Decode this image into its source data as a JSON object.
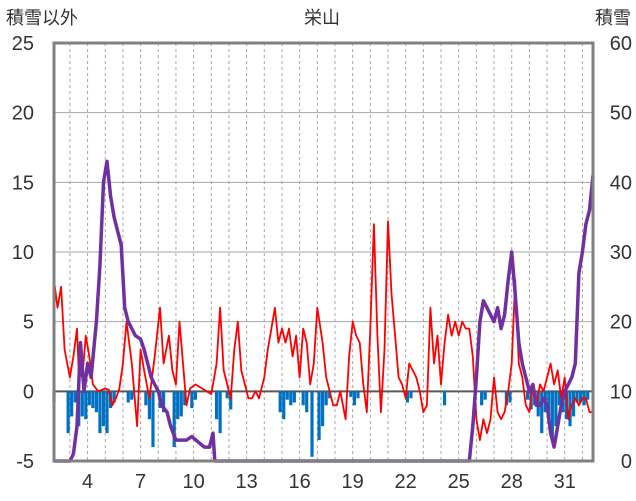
{
  "chart_data": {
    "type": "line",
    "title": "栄山",
    "left_axis_label": "積雪以外",
    "right_axis_label": "積雪",
    "x_ticks": [
      "4",
      "7",
      "10",
      "13",
      "16",
      "19",
      "22",
      "25",
      "28",
      "31"
    ],
    "y_left": {
      "min": -5,
      "max": 25,
      "ticks": [
        "25",
        "20",
        "15",
        "10",
        "5",
        "0",
        "-5"
      ]
    },
    "y_right": {
      "min": 0,
      "max": 60,
      "ticks": [
        "60",
        "50",
        "40",
        "30",
        "20",
        "10",
        "0"
      ]
    },
    "x_range": [
      2.1,
      32.6
    ],
    "grid": "dashed vertical per day, solid horizontal per 5 units",
    "series": [
      {
        "color": "#ff0000",
        "axis": "left",
        "points": [
          [
            2.1,
            8
          ],
          [
            2.3,
            6
          ],
          [
            2.5,
            7.5
          ],
          [
            2.7,
            3
          ],
          [
            3.0,
            1
          ],
          [
            3.2,
            2.5
          ],
          [
            3.4,
            4.5
          ],
          [
            3.5,
            1.5
          ],
          [
            3.7,
            1
          ],
          [
            3.9,
            4
          ],
          [
            4.1,
            2.5
          ],
          [
            4.3,
            0.5
          ],
          [
            4.6,
            0
          ],
          [
            5.0,
            0.2
          ],
          [
            5.2,
            0.1
          ],
          [
            5.4,
            -1
          ],
          [
            5.6,
            -0.5
          ],
          [
            5.8,
            0.2
          ],
          [
            6.0,
            2
          ],
          [
            6.2,
            5
          ],
          [
            6.5,
            2
          ],
          [
            6.8,
            -2.5
          ],
          [
            7.0,
            3
          ],
          [
            7.2,
            1.5
          ],
          [
            7.5,
            -0.5
          ],
          [
            7.8,
            2.5
          ],
          [
            8.1,
            6
          ],
          [
            8.3,
            2
          ],
          [
            8.6,
            4
          ],
          [
            8.8,
            1.5
          ],
          [
            9.0,
            0.5
          ],
          [
            9.2,
            5
          ],
          [
            9.4,
            2
          ],
          [
            9.6,
            -1
          ],
          [
            9.8,
            0.2
          ],
          [
            10.1,
            0.5
          ],
          [
            11.0,
            -0.2
          ],
          [
            11.3,
            2
          ],
          [
            11.5,
            6
          ],
          [
            11.7,
            1.5
          ],
          [
            11.9,
            0.5
          ],
          [
            12.1,
            -0.5
          ],
          [
            12.3,
            3
          ],
          [
            12.5,
            5
          ],
          [
            12.7,
            1.5
          ],
          [
            12.9,
            0.5
          ],
          [
            13.1,
            -0.5
          ],
          [
            13.3,
            -0.5
          ],
          [
            13.5,
            0
          ],
          [
            13.7,
            -0.5
          ],
          [
            14.0,
            1
          ],
          [
            14.2,
            3
          ],
          [
            14.4,
            4.5
          ],
          [
            14.6,
            6
          ],
          [
            14.8,
            3.5
          ],
          [
            15.0,
            4.5
          ],
          [
            15.2,
            3.5
          ],
          [
            15.4,
            4.5
          ],
          [
            15.6,
            2.5
          ],
          [
            15.8,
            4
          ],
          [
            16.0,
            1
          ],
          [
            16.2,
            4.5
          ],
          [
            16.4,
            3.5
          ],
          [
            16.6,
            0.5
          ],
          [
            16.8,
            2
          ],
          [
            17.0,
            6
          ],
          [
            17.3,
            3.5
          ],
          [
            17.5,
            1
          ],
          [
            17.7,
            0
          ],
          [
            17.9,
            -1
          ],
          [
            18.1,
            -1
          ],
          [
            18.3,
            0
          ],
          [
            18.6,
            -2
          ],
          [
            18.8,
            2.5
          ],
          [
            19.0,
            5
          ],
          [
            19.2,
            4
          ],
          [
            19.4,
            3.5
          ],
          [
            19.6,
            0.5
          ],
          [
            19.8,
            -1.5
          ],
          [
            20.0,
            4.5
          ],
          [
            20.2,
            12
          ],
          [
            20.4,
            4
          ],
          [
            20.6,
            -1.5
          ],
          [
            20.8,
            3
          ],
          [
            21.0,
            12.2
          ],
          [
            21.2,
            7
          ],
          [
            21.4,
            4
          ],
          [
            21.6,
            1
          ],
          [
            21.8,
            0.5
          ],
          [
            22.0,
            -0.5
          ],
          [
            22.2,
            2
          ],
          [
            22.4,
            1.5
          ],
          [
            22.6,
            1
          ],
          [
            22.8,
            0
          ],
          [
            23.0,
            -1.5
          ],
          [
            23.2,
            -1
          ],
          [
            23.4,
            6
          ],
          [
            23.6,
            2
          ],
          [
            23.8,
            4
          ],
          [
            24.0,
            0.5
          ],
          [
            24.2,
            3.5
          ],
          [
            24.4,
            5.5
          ],
          [
            24.6,
            4
          ],
          [
            24.8,
            5
          ],
          [
            25.0,
            4
          ],
          [
            25.2,
            5
          ],
          [
            25.4,
            4.5
          ],
          [
            25.6,
            4.5
          ],
          [
            25.8,
            2.5
          ],
          [
            26.0,
            -2
          ],
          [
            26.2,
            -3.5
          ],
          [
            26.4,
            -2
          ],
          [
            26.6,
            -3
          ],
          [
            26.8,
            -2
          ],
          [
            27.0,
            1
          ],
          [
            27.2,
            -1.5
          ],
          [
            27.4,
            -2
          ],
          [
            27.6,
            -1.5
          ],
          [
            27.8,
            0
          ],
          [
            28.0,
            2
          ],
          [
            28.2,
            8
          ],
          [
            28.4,
            2
          ],
          [
            28.6,
            1
          ],
          [
            28.8,
            -1
          ],
          [
            29.0,
            -1.5
          ],
          [
            29.2,
            0.5
          ],
          [
            29.4,
            -1
          ],
          [
            29.6,
            0.5
          ],
          [
            29.8,
            0
          ],
          [
            30.0,
            1
          ],
          [
            30.2,
            2
          ],
          [
            30.4,
            0.5
          ],
          [
            30.6,
            1.5
          ],
          [
            30.8,
            -0.5
          ],
          [
            31.0,
            1
          ],
          [
            31.2,
            -2
          ],
          [
            31.4,
            -1
          ],
          [
            31.6,
            -0.5
          ],
          [
            31.8,
            -1
          ],
          [
            32.0,
            -0.5
          ],
          [
            32.2,
            -0.5
          ],
          [
            32.4,
            -1.5
          ],
          [
            32.6,
            -1.5
          ]
        ]
      },
      {
        "color": "#7030a0",
        "axis": "right",
        "points": [
          [
            2.1,
            0
          ],
          [
            3.0,
            0
          ],
          [
            3.2,
            1
          ],
          [
            3.4,
            5
          ],
          [
            3.6,
            17
          ],
          [
            3.8,
            10
          ],
          [
            4.0,
            14
          ],
          [
            4.2,
            12
          ],
          [
            4.5,
            20
          ],
          [
            4.7,
            28
          ],
          [
            4.9,
            40
          ],
          [
            5.1,
            43
          ],
          [
            5.3,
            38
          ],
          [
            5.5,
            35
          ],
          [
            5.7,
            33
          ],
          [
            5.9,
            31
          ],
          [
            6.1,
            22
          ],
          [
            6.3,
            20
          ],
          [
            6.5,
            19
          ],
          [
            6.7,
            18
          ],
          [
            7.0,
            17.5
          ],
          [
            7.2,
            16
          ],
          [
            7.4,
            14
          ],
          [
            7.6,
            12
          ],
          [
            7.8,
            11
          ],
          [
            8.0,
            10
          ],
          [
            8.2,
            8
          ],
          [
            8.5,
            7
          ],
          [
            8.7,
            5
          ],
          [
            9.0,
            3
          ],
          [
            9.3,
            3
          ],
          [
            9.6,
            3
          ],
          [
            9.9,
            3.5
          ],
          [
            10.6,
            2
          ],
          [
            10.9,
            2
          ],
          [
            11.1,
            4
          ],
          [
            11.2,
            0
          ],
          [
            12.0,
            0
          ],
          [
            14.0,
            0
          ],
          [
            18.0,
            0
          ],
          [
            22.0,
            0
          ],
          [
            25.0,
            0
          ],
          [
            25.6,
            0
          ],
          [
            25.8,
            5
          ],
          [
            26.0,
            12
          ],
          [
            26.2,
            20
          ],
          [
            26.4,
            23
          ],
          [
            26.6,
            22
          ],
          [
            26.8,
            21
          ],
          [
            27.0,
            20
          ],
          [
            27.2,
            22
          ],
          [
            27.4,
            19
          ],
          [
            27.6,
            21
          ],
          [
            27.8,
            26
          ],
          [
            28.0,
            30
          ],
          [
            28.2,
            24
          ],
          [
            28.4,
            17
          ],
          [
            28.6,
            14
          ],
          [
            28.8,
            12
          ],
          [
            29.0,
            10
          ],
          [
            29.2,
            11
          ],
          [
            29.4,
            8
          ],
          [
            29.6,
            8
          ],
          [
            29.8,
            9
          ],
          [
            30.0,
            8
          ],
          [
            30.2,
            4
          ],
          [
            30.4,
            2
          ],
          [
            30.6,
            5
          ],
          [
            30.8,
            8
          ],
          [
            31.0,
            10
          ],
          [
            31.2,
            11
          ],
          [
            31.4,
            12
          ],
          [
            31.6,
            14
          ],
          [
            31.8,
            27
          ],
          [
            32.0,
            30
          ],
          [
            32.2,
            34
          ],
          [
            32.4,
            36
          ],
          [
            32.6,
            41
          ]
        ]
      },
      {
        "color": "#0070c0",
        "type": "bar",
        "axis": "left",
        "points": [
          [
            2.1,
            -0.8
          ],
          [
            2.9,
            -3
          ],
          [
            3.1,
            -1.8
          ],
          [
            3.3,
            -0.8
          ],
          [
            3.5,
            -2.5
          ],
          [
            3.7,
            -1.8
          ],
          [
            3.9,
            -2
          ],
          [
            4.1,
            -1
          ],
          [
            4.3,
            -1.2
          ],
          [
            4.5,
            -1.5
          ],
          [
            4.7,
            -3
          ],
          [
            4.9,
            -2.5
          ],
          [
            5.1,
            -3
          ],
          [
            5.3,
            -1.2
          ],
          [
            5.5,
            -0.8
          ],
          [
            6.3,
            -0.8
          ],
          [
            6.5,
            -0.6
          ],
          [
            7.3,
            -1
          ],
          [
            7.5,
            -2
          ],
          [
            7.7,
            -4
          ],
          [
            8.1,
            -1.2
          ],
          [
            8.3,
            -1.5
          ],
          [
            8.9,
            -4
          ],
          [
            9.1,
            -2
          ],
          [
            9.3,
            -1.8
          ],
          [
            9.5,
            -1
          ],
          [
            9.9,
            -1.2
          ],
          [
            10.1,
            -0.6
          ],
          [
            11.3,
            -2
          ],
          [
            11.5,
            -3
          ],
          [
            11.9,
            -0.5
          ],
          [
            12.1,
            -1.3
          ],
          [
            14.9,
            -1.5
          ],
          [
            15.1,
            -2
          ],
          [
            15.3,
            -0.6
          ],
          [
            15.5,
            -1
          ],
          [
            15.7,
            -0.8
          ],
          [
            16.2,
            -1
          ],
          [
            16.4,
            -1.5
          ],
          [
            16.7,
            -4.7
          ],
          [
            17.1,
            -3.5
          ],
          [
            17.3,
            -2.5
          ],
          [
            17.5,
            -1
          ],
          [
            17.7,
            -0.5
          ],
          [
            18.9,
            -0.4
          ],
          [
            19.1,
            -1
          ],
          [
            19.3,
            -0.5
          ],
          [
            22.1,
            -0.8
          ],
          [
            22.3,
            -0.5
          ],
          [
            24.2,
            -1
          ],
          [
            26.3,
            -1
          ],
          [
            26.5,
            -0.6
          ],
          [
            27.7,
            -1
          ],
          [
            27.9,
            -0.8
          ],
          [
            28.9,
            -0.6
          ],
          [
            29.1,
            -1.3
          ],
          [
            29.3,
            -1
          ],
          [
            29.5,
            -1.8
          ],
          [
            29.7,
            -3
          ],
          [
            29.9,
            -1.5
          ],
          [
            30.1,
            -1.8
          ],
          [
            30.3,
            -3.5
          ],
          [
            30.5,
            -2.5
          ],
          [
            30.7,
            -1
          ],
          [
            30.9,
            -1.5
          ],
          [
            31.1,
            -2
          ],
          [
            31.3,
            -2.5
          ],
          [
            31.5,
            -1.8
          ],
          [
            31.7,
            -0.8
          ],
          [
            31.9,
            -0.8
          ],
          [
            32.1,
            -1
          ],
          [
            32.3,
            -0.6
          ]
        ]
      }
    ]
  }
}
